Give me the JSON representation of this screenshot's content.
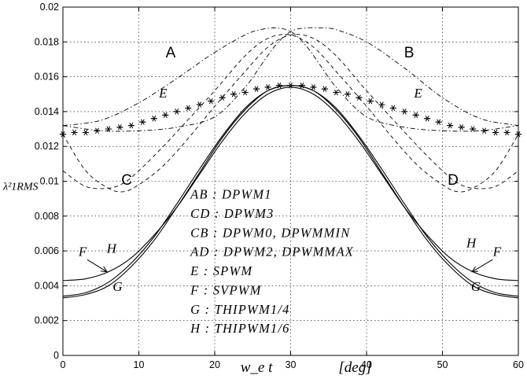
{
  "chart_data": {
    "type": "line",
    "xlabel": "w_e t",
    "xlabel_unit": "[deg]",
    "ylabel": "λ²1RMS",
    "xlim": [
      0,
      60
    ],
    "ylim": [
      0,
      0.02
    ],
    "x_ticks": [
      0,
      10,
      20,
      30,
      40,
      50,
      60
    ],
    "y_ticks": [
      "0",
      "0.002",
      "0.004",
      "0.006",
      "0.008",
      "0.01",
      "0.012",
      "0.014",
      "0.016",
      "0.018",
      "0.02"
    ],
    "grid": true,
    "series": [
      {
        "name": "A",
        "style": "dashdot",
        "x": [
          0,
          5,
          10,
          15,
          20,
          24,
          26,
          28,
          30,
          32,
          34,
          36,
          40,
          45,
          50,
          55,
          60
        ],
        "y": [
          0.0132,
          0.0135,
          0.0145,
          0.0159,
          0.0174,
          0.0184,
          0.0187,
          0.0188,
          0.0186,
          0.0178,
          0.0166,
          0.0154,
          0.0137,
          0.0131,
          0.0129,
          0.0129,
          0.0132
        ]
      },
      {
        "name": "B",
        "style": "dashdot",
        "x": [
          0,
          5,
          10,
          15,
          20,
          24,
          26,
          28,
          30,
          32,
          34,
          36,
          40,
          45,
          50,
          55,
          60
        ],
        "y": [
          0.0132,
          0.0129,
          0.0129,
          0.0131,
          0.0137,
          0.0154,
          0.0166,
          0.0178,
          0.0186,
          0.0188,
          0.0188,
          0.0187,
          0.018,
          0.0165,
          0.0148,
          0.0136,
          0.0132
        ]
      },
      {
        "name": "C",
        "style": "dashed",
        "x": [
          0,
          3,
          6,
          8,
          10,
          13,
          16,
          20,
          24,
          27,
          30,
          33,
          36,
          40,
          44,
          47,
          50,
          52,
          54,
          57,
          60
        ],
        "y": [
          0.0127,
          0.0106,
          0.0096,
          0.0094,
          0.0098,
          0.0108,
          0.0122,
          0.0143,
          0.0163,
          0.0177,
          0.0184,
          0.0182,
          0.0172,
          0.0152,
          0.0133,
          0.0119,
          0.0106,
          0.0099,
          0.0096,
          0.0097,
          0.0106
        ]
      },
      {
        "name": "D",
        "style": "dashed",
        "x": [
          0,
          3,
          6,
          8,
          10,
          13,
          16,
          20,
          24,
          27,
          30,
          33,
          36,
          40,
          44,
          47,
          50,
          52,
          54,
          57,
          60
        ],
        "y": [
          0.0106,
          0.0097,
          0.0096,
          0.0099,
          0.0106,
          0.0119,
          0.0133,
          0.0152,
          0.0172,
          0.0182,
          0.0184,
          0.0177,
          0.0163,
          0.0143,
          0.0122,
          0.0108,
          0.0098,
          0.0094,
          0.0096,
          0.0106,
          0.0127
        ]
      },
      {
        "name": "E",
        "style": "asterisk",
        "x": [
          0,
          1.5,
          3,
          4.5,
          6,
          7.5,
          9,
          10.5,
          12,
          13.5,
          15,
          16.5,
          18,
          19.5,
          21,
          22.5,
          24,
          25.5,
          27,
          28.5,
          30,
          31.5,
          33,
          34.5,
          36,
          37.5,
          39,
          40.5,
          42,
          43.5,
          45,
          46.5,
          48,
          49.5,
          51,
          52.5,
          54,
          55.5,
          57,
          58.5,
          60
        ],
        "y": [
          0.0127,
          0.0128,
          0.0128,
          0.0129,
          0.013,
          0.0131,
          0.0132,
          0.0134,
          0.0136,
          0.0138,
          0.014,
          0.0142,
          0.0144,
          0.0146,
          0.0148,
          0.015,
          0.0151,
          0.0153,
          0.0154,
          0.0155,
          0.0155,
          0.0155,
          0.0154,
          0.0153,
          0.0151,
          0.015,
          0.0148,
          0.0146,
          0.0144,
          0.0142,
          0.014,
          0.0138,
          0.0136,
          0.0134,
          0.0132,
          0.0131,
          0.013,
          0.0129,
          0.0128,
          0.0128,
          0.0127
        ]
      },
      {
        "name": "F",
        "style": "solid",
        "x": [
          0,
          3,
          6,
          9,
          12,
          15,
          18,
          21,
          24,
          27,
          30,
          33,
          36,
          39,
          42,
          45,
          48,
          51,
          54,
          57,
          60
        ],
        "y": [
          0.0043,
          0.0044,
          0.0048,
          0.0056,
          0.0069,
          0.0085,
          0.0104,
          0.0123,
          0.0139,
          0.015,
          0.0154,
          0.015,
          0.0139,
          0.0123,
          0.0104,
          0.0085,
          0.0069,
          0.0056,
          0.0048,
          0.0044,
          0.0043
        ]
      },
      {
        "name": "G",
        "style": "solid",
        "x": [
          0,
          3,
          6,
          9,
          12,
          15,
          18,
          21,
          24,
          27,
          30,
          33,
          36,
          39,
          42,
          45,
          48,
          51,
          54,
          57,
          60
        ],
        "y": [
          0.0033,
          0.0035,
          0.004,
          0.0051,
          0.0066,
          0.0085,
          0.0105,
          0.0125,
          0.0141,
          0.0152,
          0.0155,
          0.0152,
          0.0141,
          0.0125,
          0.0105,
          0.0085,
          0.0066,
          0.0051,
          0.004,
          0.0035,
          0.0033
        ]
      },
      {
        "name": "H",
        "style": "solid",
        "x": [
          0,
          3,
          6,
          9,
          12,
          15,
          18,
          21,
          24,
          27,
          30,
          33,
          36,
          39,
          42,
          45,
          48,
          51,
          54,
          57,
          60
        ],
        "y": [
          0.0034,
          0.0036,
          0.0042,
          0.0053,
          0.0068,
          0.0087,
          0.0107,
          0.0126,
          0.0142,
          0.0152,
          0.0155,
          0.0152,
          0.0142,
          0.0126,
          0.0107,
          0.0087,
          0.0068,
          0.0053,
          0.0042,
          0.0036,
          0.0034
        ]
      }
    ],
    "curve_labels": [
      {
        "text": "A",
        "x": 14.2,
        "y": 0.0171,
        "font": "sans"
      },
      {
        "text": "B",
        "x": 45.6,
        "y": 0.0171,
        "font": "sans"
      },
      {
        "text": "C",
        "x": 8.4,
        "y": 0.0098,
        "font": "sans"
      },
      {
        "text": "D",
        "x": 51.4,
        "y": 0.0098,
        "font": "sans"
      },
      {
        "text": "E",
        "x": 13.2,
        "y": 0.0148,
        "font": "ital"
      },
      {
        "text": "E",
        "x": 46.8,
        "y": 0.0148,
        "font": "ital"
      },
      {
        "text": "F",
        "x": 2.6,
        "y": 0.0057,
        "font": "ital"
      },
      {
        "text": "H",
        "x": 6.4,
        "y": 0.0059,
        "font": "ital"
      },
      {
        "text": "G",
        "x": 7.2,
        "y": 0.0037,
        "font": "ital"
      },
      {
        "text": "H",
        "x": 53.8,
        "y": 0.0062,
        "font": "ital"
      },
      {
        "text": "F",
        "x": 57.2,
        "y": 0.0057,
        "font": "ital"
      },
      {
        "text": "G",
        "x": 54.4,
        "y": 0.0037,
        "font": "ital"
      }
    ],
    "legend_lines": [
      "AB : DPWM1",
      "CD : DPWM3",
      "CB : DPWM0, DPWMMIN",
      "AD : DPWM2, DPWMMAX",
      "E : SPWM",
      "F : SVPWM",
      "G : THIPWM1/4",
      "H : THIPWM1/6"
    ]
  }
}
